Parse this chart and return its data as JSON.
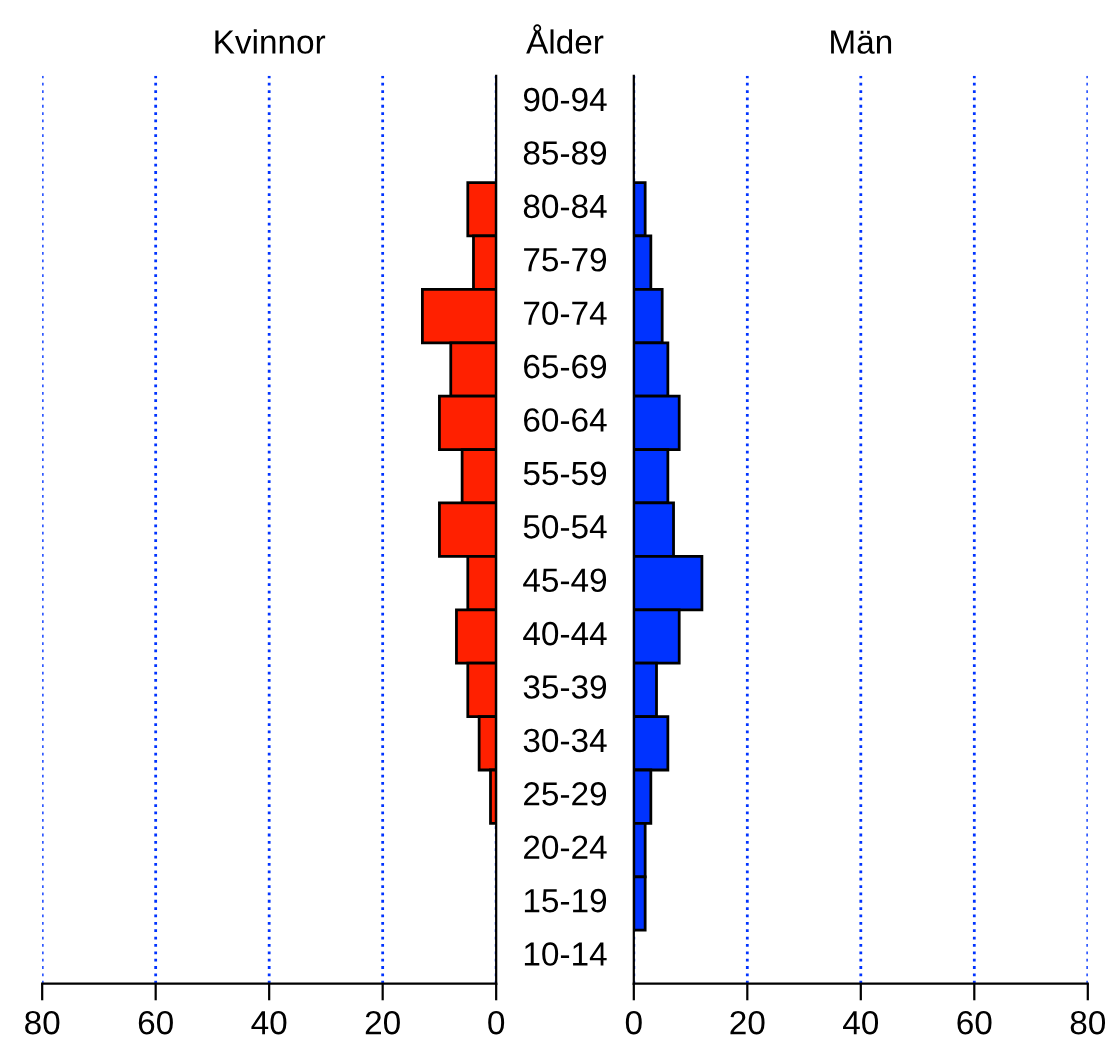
{
  "chart_data": [
    {
      "type": "bar",
      "orientation": "horizontal",
      "title": "Kvinnor",
      "ylabel": "Ålder",
      "categories": [
        "90-94",
        "85-89",
        "80-84",
        "75-79",
        "70-74",
        "65-69",
        "60-64",
        "55-59",
        "50-54",
        "45-49",
        "40-44",
        "35-39",
        "30-34",
        "25-29",
        "20-24",
        "15-19",
        "10-14"
      ],
      "series": [
        {
          "color": "#ff2000",
          "values": [
            null,
            null,
            5,
            4,
            13,
            8,
            10,
            6,
            10,
            5,
            7,
            5,
            3,
            1,
            null,
            null,
            null
          ]
        }
      ],
      "xlim": [
        80,
        0
      ],
      "xticks": [
        80,
        60,
        40,
        20,
        0
      ],
      "grid": "x",
      "tick_labels": "x"
    },
    {
      "type": "bar",
      "orientation": "horizontal",
      "title": "Män",
      "series": [
        {
          "color": "#0033ff",
          "values": [
            null,
            null,
            2,
            3,
            5,
            6,
            8,
            6,
            7,
            12,
            8,
            4,
            6,
            3,
            2,
            2,
            null
          ]
        }
      ],
      "xlim": [
        0,
        80
      ],
      "xticks": [
        0,
        20,
        40,
        60,
        80
      ],
      "grid": "x",
      "tick_labels": "x"
    }
  ]
}
